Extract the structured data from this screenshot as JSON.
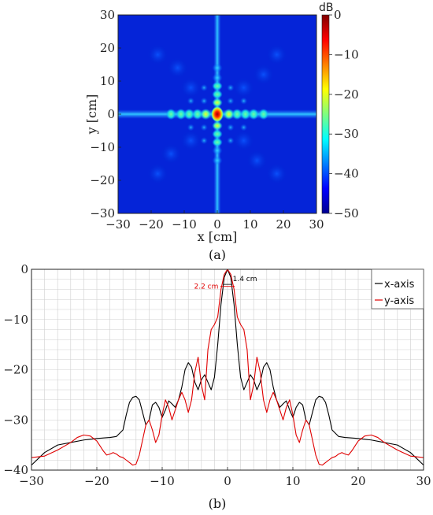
{
  "chart_data": [
    {
      "type": "heatmap",
      "caption": "(a)",
      "xlabel": "x [cm]",
      "ylabel": "y [cm]",
      "xlim": [
        -30,
        30
      ],
      "ylim": [
        -30,
        30
      ],
      "xticks": [
        -30,
        -20,
        -10,
        0,
        10,
        20,
        30
      ],
      "yticks": [
        30,
        20,
        10,
        0,
        -10,
        -20,
        -30
      ],
      "colorbar": {
        "unit": "dB",
        "range": [
          -50,
          0
        ],
        "ticks": [
          0,
          -10,
          -20,
          -30,
          -40,
          -50
        ],
        "colormap": "jet"
      },
      "features": {
        "center_peak_db": 0,
        "background_db": -42,
        "axis_stripe_db": -32,
        "lobes_x_cm": [
          -14,
          -11,
          -8.5,
          -6,
          -3.5,
          3.5,
          6,
          8.5,
          11,
          14
        ],
        "lobes_y_cm": [
          -14,
          -11,
          -8.5,
          -6,
          -3.5,
          3.5,
          6,
          8.5,
          11,
          14
        ]
      }
    },
    {
      "type": "line",
      "caption": "(b)",
      "xlim": [
        -30,
        30
      ],
      "ylim": [
        -40,
        0
      ],
      "xticks": [
        -30,
        -20,
        -10,
        0,
        10,
        20,
        30
      ],
      "yticks": [
        0,
        -10,
        -20,
        -30,
        -40
      ],
      "grid": true,
      "legend_position": "top-right",
      "annotations": [
        {
          "text": "1.4 cm",
          "color": "#000000",
          "x": 0,
          "y": -3
        },
        {
          "text": "2.2 cm",
          "color": "#e00000",
          "x": 0,
          "y": -3.4
        }
      ],
      "series": [
        {
          "name": "x-axis",
          "color": "#000000",
          "x": [
            -30,
            -28,
            -26,
            -24,
            -22,
            -20,
            -19,
            -18,
            -17,
            -16,
            -15.5,
            -15,
            -14.5,
            -14,
            -13.5,
            -13,
            -12.5,
            -12,
            -11.5,
            -11,
            -10.5,
            -10,
            -9.5,
            -9,
            -8.5,
            -8,
            -7.5,
            -7,
            -6.5,
            -6,
            -5.5,
            -5,
            -4.5,
            -4,
            -3.5,
            -3,
            -2.5,
            -2,
            -1.5,
            -1,
            -0.5,
            0,
            0.5,
            1,
            1.5,
            2,
            2.5,
            3,
            3.5,
            4,
            4.5,
            5,
            5.5,
            6,
            6.5,
            7,
            7.5,
            8,
            8.5,
            9,
            9.5,
            10,
            10.5,
            11,
            11.5,
            12,
            12.5,
            13,
            13.5,
            14,
            14.5,
            15,
            15.5,
            16,
            17,
            18,
            19,
            20,
            22,
            24,
            26,
            28,
            30
          ],
          "values": [
            -39,
            -36.5,
            -35,
            -34.5,
            -34,
            -33.7,
            -33.6,
            -33.5,
            -33.3,
            -32,
            -29,
            -26.5,
            -25.5,
            -25.3,
            -26,
            -28.5,
            -31,
            -30,
            -27,
            -26.5,
            -27.5,
            -29.5,
            -28,
            -26.2,
            -26.8,
            -27.5,
            -26,
            -23.5,
            -20,
            -18.6,
            -19.5,
            -22.5,
            -24,
            -22,
            -21,
            -22.5,
            -24,
            -21.5,
            -15,
            -7,
            -1.6,
            0,
            -1.6,
            -7,
            -15,
            -21.5,
            -24,
            -22.5,
            -21,
            -22,
            -24,
            -22.5,
            -19.5,
            -18.6,
            -20,
            -23.5,
            -26,
            -27.5,
            -26.8,
            -26.2,
            -28,
            -29.5,
            -27.5,
            -26.5,
            -27,
            -30,
            -31,
            -28.5,
            -26,
            -25.3,
            -25.5,
            -26.5,
            -29,
            -32,
            -33.3,
            -33.5,
            -33.6,
            -33.7,
            -34,
            -34.5,
            -35,
            -36.5,
            -39
          ]
        },
        {
          "name": "y-axis",
          "color": "#e00000",
          "x": [
            -30,
            -28,
            -26,
            -24,
            -23,
            -22,
            -21,
            -20,
            -19,
            -18.5,
            -18,
            -17.5,
            -17,
            -16.5,
            -16,
            -15.5,
            -15,
            -14.5,
            -14,
            -13.5,
            -13,
            -12.5,
            -12,
            -11.5,
            -11,
            -10.5,
            -10,
            -9.5,
            -9,
            -8.5,
            -8,
            -7.5,
            -7,
            -6.5,
            -6,
            -5.5,
            -5,
            -4.5,
            -4,
            -3.5,
            -3,
            -2.5,
            -2,
            -1.5,
            -1,
            -0.5,
            0,
            0.5,
            1,
            1.5,
            2,
            2.5,
            3,
            3.5,
            4,
            4.5,
            5,
            5.5,
            6,
            6.5,
            7,
            7.5,
            8,
            8.5,
            9,
            9.5,
            10,
            10.5,
            11,
            11.5,
            12,
            12.5,
            13,
            13.5,
            14,
            14.5,
            15,
            15.5,
            16,
            16.5,
            17,
            17.5,
            18,
            18.5,
            19,
            20,
            21,
            22,
            23,
            24,
            26,
            28,
            30
          ],
          "values": [
            -37.5,
            -37.2,
            -36,
            -34.5,
            -33.5,
            -33,
            -33.2,
            -34.2,
            -36.2,
            -37,
            -36.8,
            -36.5,
            -36.8,
            -37.3,
            -37.5,
            -38,
            -38.5,
            -39,
            -38.8,
            -37,
            -34,
            -31,
            -30,
            -32,
            -34.5,
            -33,
            -29,
            -26,
            -27.5,
            -30,
            -28,
            -26,
            -24.5,
            -26,
            -28.5,
            -26,
            -20.5,
            -17.5,
            -23,
            -26,
            -16,
            -12,
            -11,
            -9.5,
            -4,
            -1,
            0,
            -1,
            -4,
            -9.5,
            -11,
            -12,
            -16,
            -26,
            -23,
            -17.5,
            -20.5,
            -26,
            -28.5,
            -26,
            -24.5,
            -26,
            -28,
            -30,
            -27.5,
            -26,
            -29,
            -33,
            -34.5,
            -32,
            -30,
            -31,
            -34,
            -37,
            -38.8,
            -39,
            -38.5,
            -38,
            -37.5,
            -37.3,
            -36.8,
            -36.5,
            -36.8,
            -37,
            -36.2,
            -34.2,
            -33.2,
            -33,
            -33.5,
            -34.5,
            -36,
            -37.2,
            -37.5
          ]
        }
      ]
    }
  ]
}
